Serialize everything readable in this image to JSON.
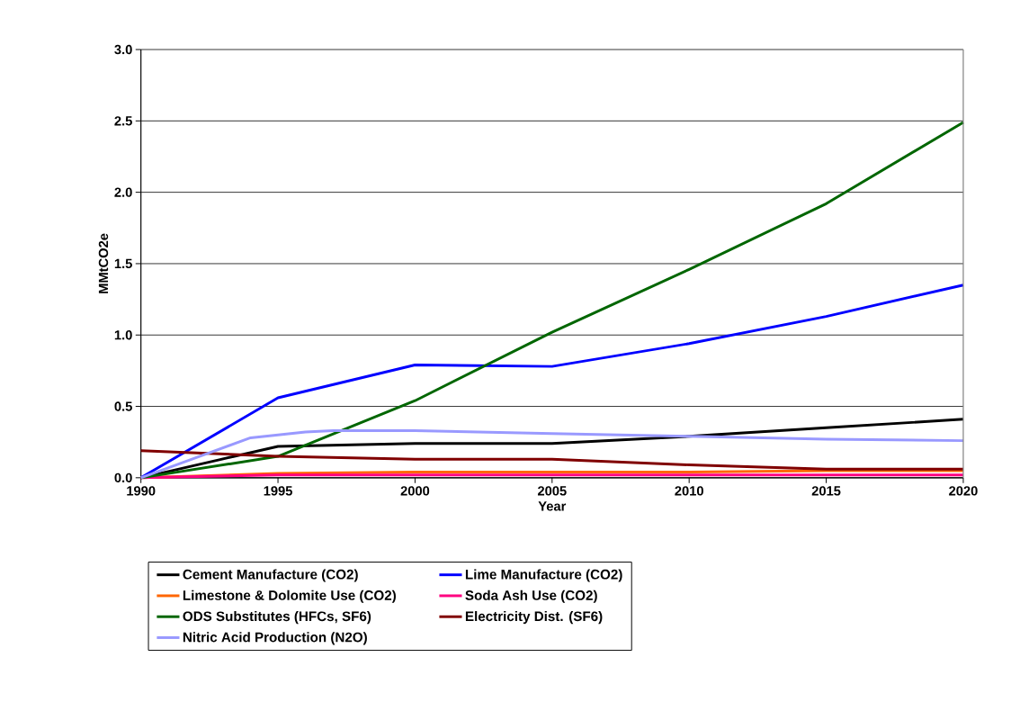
{
  "chart_data": {
    "type": "line",
    "xlabel": "Year",
    "ylabel": "MMtCO2e",
    "x": [
      1990,
      1995,
      2000,
      2005,
      2010,
      2015,
      2020
    ],
    "series": [
      {
        "name": "Cement Manufacture (CO2)",
        "color": "#000000",
        "values": [
          0,
          0.22,
          0.24,
          0.24,
          0.29,
          0.35,
          0.41
        ]
      },
      {
        "name": "Lime Manufacture (CO2)",
        "color": "#0000ff",
        "values": [
          0,
          0.56,
          0.79,
          0.78,
          0.94,
          1.13,
          1.35
        ]
      },
      {
        "name": "Limestone & Dolomite Use (CO2)",
        "color": "#ff6600",
        "values": [
          0,
          0.03,
          0.04,
          0.04,
          0.04,
          0.05,
          0.05
        ]
      },
      {
        "name": "Soda Ash Use (CO2)",
        "color": "#ff0080",
        "values": [
          0,
          0.02,
          0.02,
          0.02,
          0.02,
          0.02,
          0.02
        ]
      },
      {
        "name": "ODS Substitutes (HFCs, SF6)",
        "color": "#006600",
        "values": [
          0,
          0.15,
          0.54,
          1.02,
          1.46,
          1.92,
          2.49
        ]
      },
      {
        "name": "Electricity Dist. (SF6)",
        "color": "#800000",
        "values": [
          0.19,
          0.15,
          0.13,
          0.13,
          0.09,
          0.06,
          0.06
        ]
      },
      {
        "name": "Nitric Acid Production (N2O)",
        "color": "#9999ff",
        "x": [
          1990,
          1994,
          1995,
          1996,
          1997,
          1998,
          2000,
          2005,
          2010,
          2015,
          2020
        ],
        "values": [
          0,
          0.28,
          0.3,
          0.32,
          0.33,
          0.33,
          0.33,
          0.31,
          0.29,
          0.27,
          0.26
        ]
      }
    ],
    "xlim": [
      1990,
      2020
    ],
    "xticks": [
      1990,
      1995,
      2000,
      2005,
      2010,
      2015,
      2020
    ],
    "ylim": [
      0,
      3
    ],
    "yticks": [
      {
        "value": 0,
        "label": "0.0"
      },
      {
        "value": 0.5,
        "label": "0.5"
      },
      {
        "value": 1,
        "label": "1.0"
      },
      {
        "value": 1.5,
        "label": "1.5"
      },
      {
        "value": 2,
        "label": "2.0"
      },
      {
        "value": 2.5,
        "label": "2.5"
      },
      {
        "value": 3,
        "label": "3.0"
      }
    ],
    "grid": "y",
    "legend": "bottom",
    "line_style": "solid"
  }
}
